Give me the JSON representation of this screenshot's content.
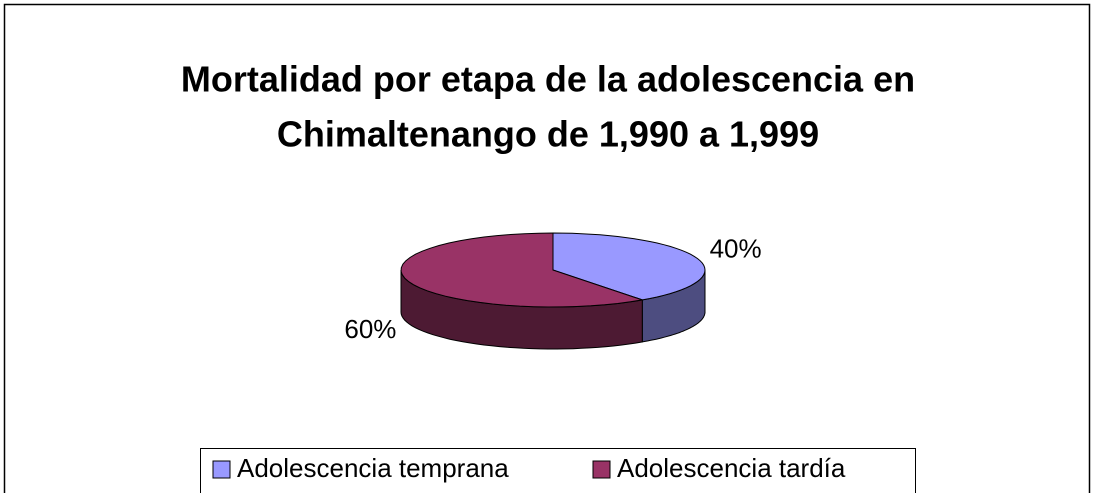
{
  "chart_data": {
    "type": "pie3d",
    "title": [
      "Mortalidad por etapa de la adolescencia en",
      "Chimaltenango  de 1,990 a 1,999"
    ],
    "categories": [
      "Adolescencia temprana",
      "Adolescencia tardía"
    ],
    "values": [
      40,
      60
    ],
    "value_labels": [
      "40%",
      "60%"
    ],
    "colors": [
      "#9999ff",
      "#993366"
    ],
    "side_colors": [
      "#4d4d80",
      "#4d1a33"
    ],
    "legend": "bottom"
  }
}
